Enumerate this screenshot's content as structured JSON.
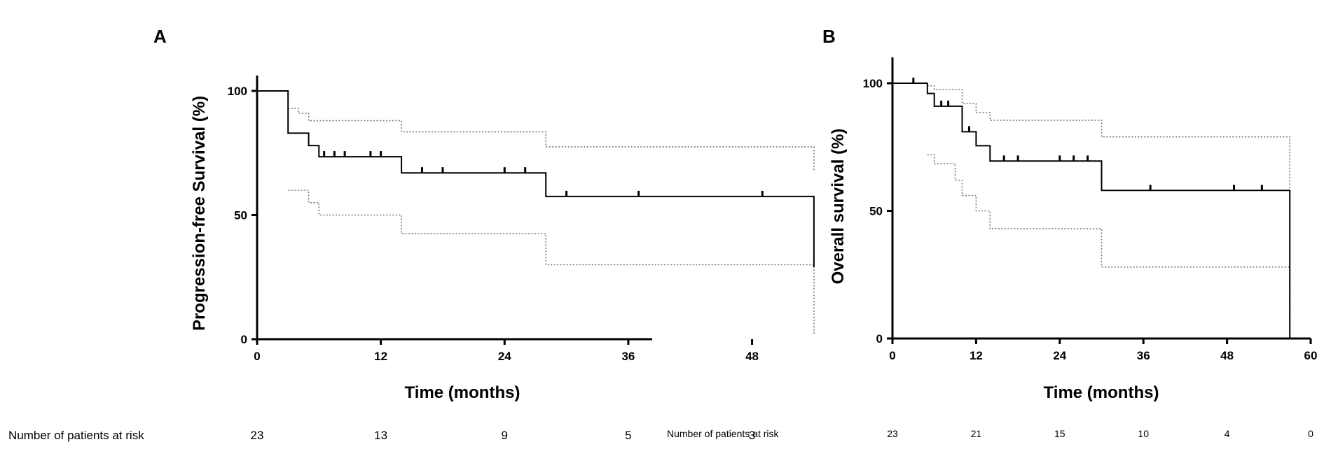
{
  "chart_data": [
    {
      "type": "line",
      "subtype": "kaplan-meier",
      "panel_label": "A",
      "xlabel": "Time (months)",
      "ylabel": "Progression-free Survival (%)",
      "xlim": [
        0,
        55
      ],
      "ylim": [
        0,
        105
      ],
      "xticks": [
        0,
        12,
        24,
        36,
        48
      ],
      "yticks": [
        0,
        50,
        100
      ],
      "grid": false,
      "survival": [
        [
          0,
          100
        ],
        [
          3,
          100
        ],
        [
          3,
          83
        ],
        [
          5,
          83
        ],
        [
          5,
          78
        ],
        [
          6,
          78
        ],
        [
          6,
          73.5
        ],
        [
          14,
          73.5
        ],
        [
          14,
          67
        ],
        [
          28,
          67
        ],
        [
          28,
          57.5
        ],
        [
          54,
          57.5
        ],
        [
          54,
          29
        ]
      ],
      "upper_ci": [
        [
          3,
          93
        ],
        [
          4,
          93
        ],
        [
          4,
          91
        ],
        [
          5,
          91
        ],
        [
          5,
          88
        ],
        [
          14,
          88
        ],
        [
          14,
          83.5
        ],
        [
          28,
          83.5
        ],
        [
          28,
          77.5
        ],
        [
          54,
          77.5
        ],
        [
          54,
          68
        ]
      ],
      "lower_ci": [
        [
          3,
          60
        ],
        [
          5,
          60
        ],
        [
          5,
          55
        ],
        [
          6,
          55
        ],
        [
          6,
          50
        ],
        [
          14,
          50
        ],
        [
          14,
          42.5
        ],
        [
          28,
          42.5
        ],
        [
          28,
          30
        ],
        [
          54,
          30
        ],
        [
          54,
          2
        ]
      ],
      "censored": [
        [
          6.5,
          73.5
        ],
        [
          7.5,
          73.5
        ],
        [
          8.5,
          73.5
        ],
        [
          11,
          73.5
        ],
        [
          12,
          73.5
        ],
        [
          16,
          67
        ],
        [
          18,
          67
        ],
        [
          24,
          67
        ],
        [
          26,
          67
        ],
        [
          30,
          57.5
        ],
        [
          37,
          57.5
        ],
        [
          49,
          57.5
        ]
      ],
      "risk_table": {
        "label": "Number of patients at risk",
        "times": [
          0,
          12,
          24,
          36,
          48
        ],
        "counts": [
          "23",
          "13",
          "9",
          "5",
          "3"
        ]
      }
    },
    {
      "type": "line",
      "subtype": "kaplan-meier",
      "panel_label": "B",
      "xlabel": "Time (months)",
      "ylabel": "Overall survival (%)",
      "xlim": [
        0,
        60
      ],
      "ylim": [
        0,
        108
      ],
      "xticks": [
        0,
        12,
        24,
        36,
        48,
        60
      ],
      "yticks": [
        0,
        50,
        100
      ],
      "grid": false,
      "survival": [
        [
          0,
          100
        ],
        [
          5,
          100
        ],
        [
          5,
          96
        ],
        [
          6,
          96
        ],
        [
          6,
          91
        ],
        [
          10,
          91
        ],
        [
          10,
          81
        ],
        [
          12,
          81
        ],
        [
          12,
          75.5
        ],
        [
          14,
          75.5
        ],
        [
          14,
          69.5
        ],
        [
          30,
          69.5
        ],
        [
          30,
          58
        ],
        [
          57,
          58
        ],
        [
          57,
          0
        ]
      ],
      "upper_ci": [
        [
          5,
          99
        ],
        [
          6,
          99
        ],
        [
          6,
          97.5
        ],
        [
          10,
          97.5
        ],
        [
          10,
          92
        ],
        [
          12,
          92
        ],
        [
          12,
          88.5
        ],
        [
          14,
          88.5
        ],
        [
          14,
          85.5
        ],
        [
          30,
          85.5
        ],
        [
          30,
          79
        ],
        [
          57,
          79
        ],
        [
          57,
          58
        ]
      ],
      "lower_ci": [
        [
          5,
          72
        ],
        [
          6,
          72
        ],
        [
          6,
          68.5
        ],
        [
          9,
          68.5
        ],
        [
          9,
          62
        ],
        [
          10,
          62
        ],
        [
          10,
          56
        ],
        [
          12,
          56
        ],
        [
          12,
          50
        ],
        [
          14,
          50
        ],
        [
          14,
          43
        ],
        [
          30,
          43
        ],
        [
          30,
          28
        ],
        [
          57,
          28
        ],
        [
          57,
          0
        ]
      ],
      "censored": [
        [
          3,
          100
        ],
        [
          7,
          91
        ],
        [
          8,
          91
        ],
        [
          11,
          81
        ],
        [
          16,
          69.5
        ],
        [
          18,
          69.5
        ],
        [
          24,
          69.5
        ],
        [
          26,
          69.5
        ],
        [
          28,
          69.5
        ],
        [
          37,
          58
        ],
        [
          49,
          58
        ],
        [
          53,
          58
        ]
      ],
      "risk_table": {
        "label": "Number of patients at risk",
        "times": [
          0,
          12,
          24,
          36,
          48,
          60
        ],
        "counts": [
          "23",
          "21",
          "15",
          "10",
          "4",
          "0"
        ]
      }
    }
  ]
}
